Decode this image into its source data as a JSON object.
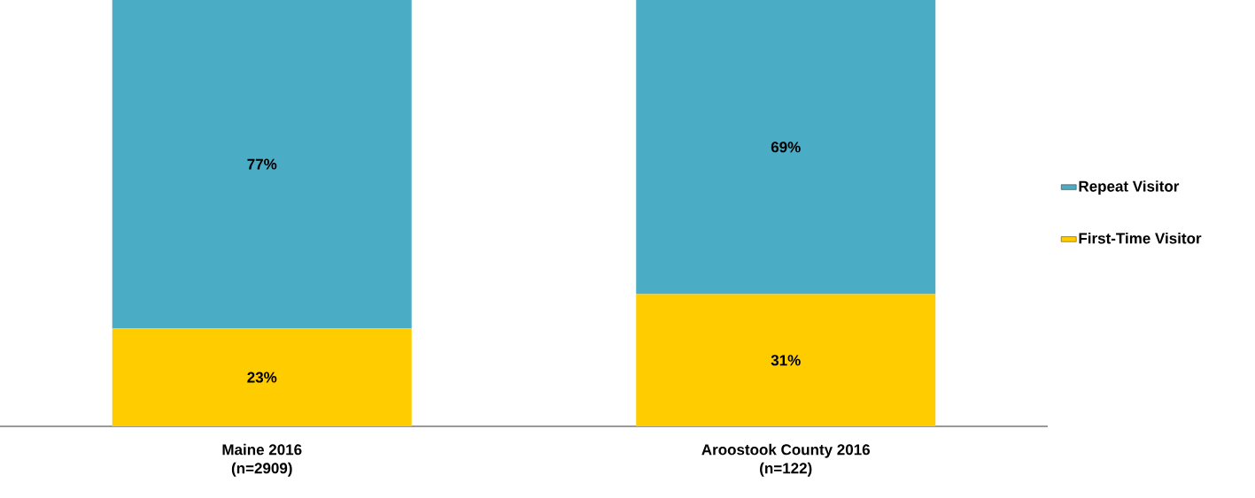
{
  "chart_data": {
    "type": "bar",
    "stacked": true,
    "legend": "right",
    "categories": [
      "Maine 2016 (n=2909)",
      "Aroostook County 2016 (n=122)"
    ],
    "series": [
      {
        "name": "First-Time Visitor",
        "color": "#ffcc00",
        "values": [
          23,
          31
        ],
        "value_labels": [
          "23%",
          "31%"
        ]
      },
      {
        "name": "Repeat Visitor",
        "color": "#4bacc6",
        "values": [
          77,
          69
        ],
        "value_labels": [
          "77%",
          "69%"
        ]
      }
    ]
  }
}
